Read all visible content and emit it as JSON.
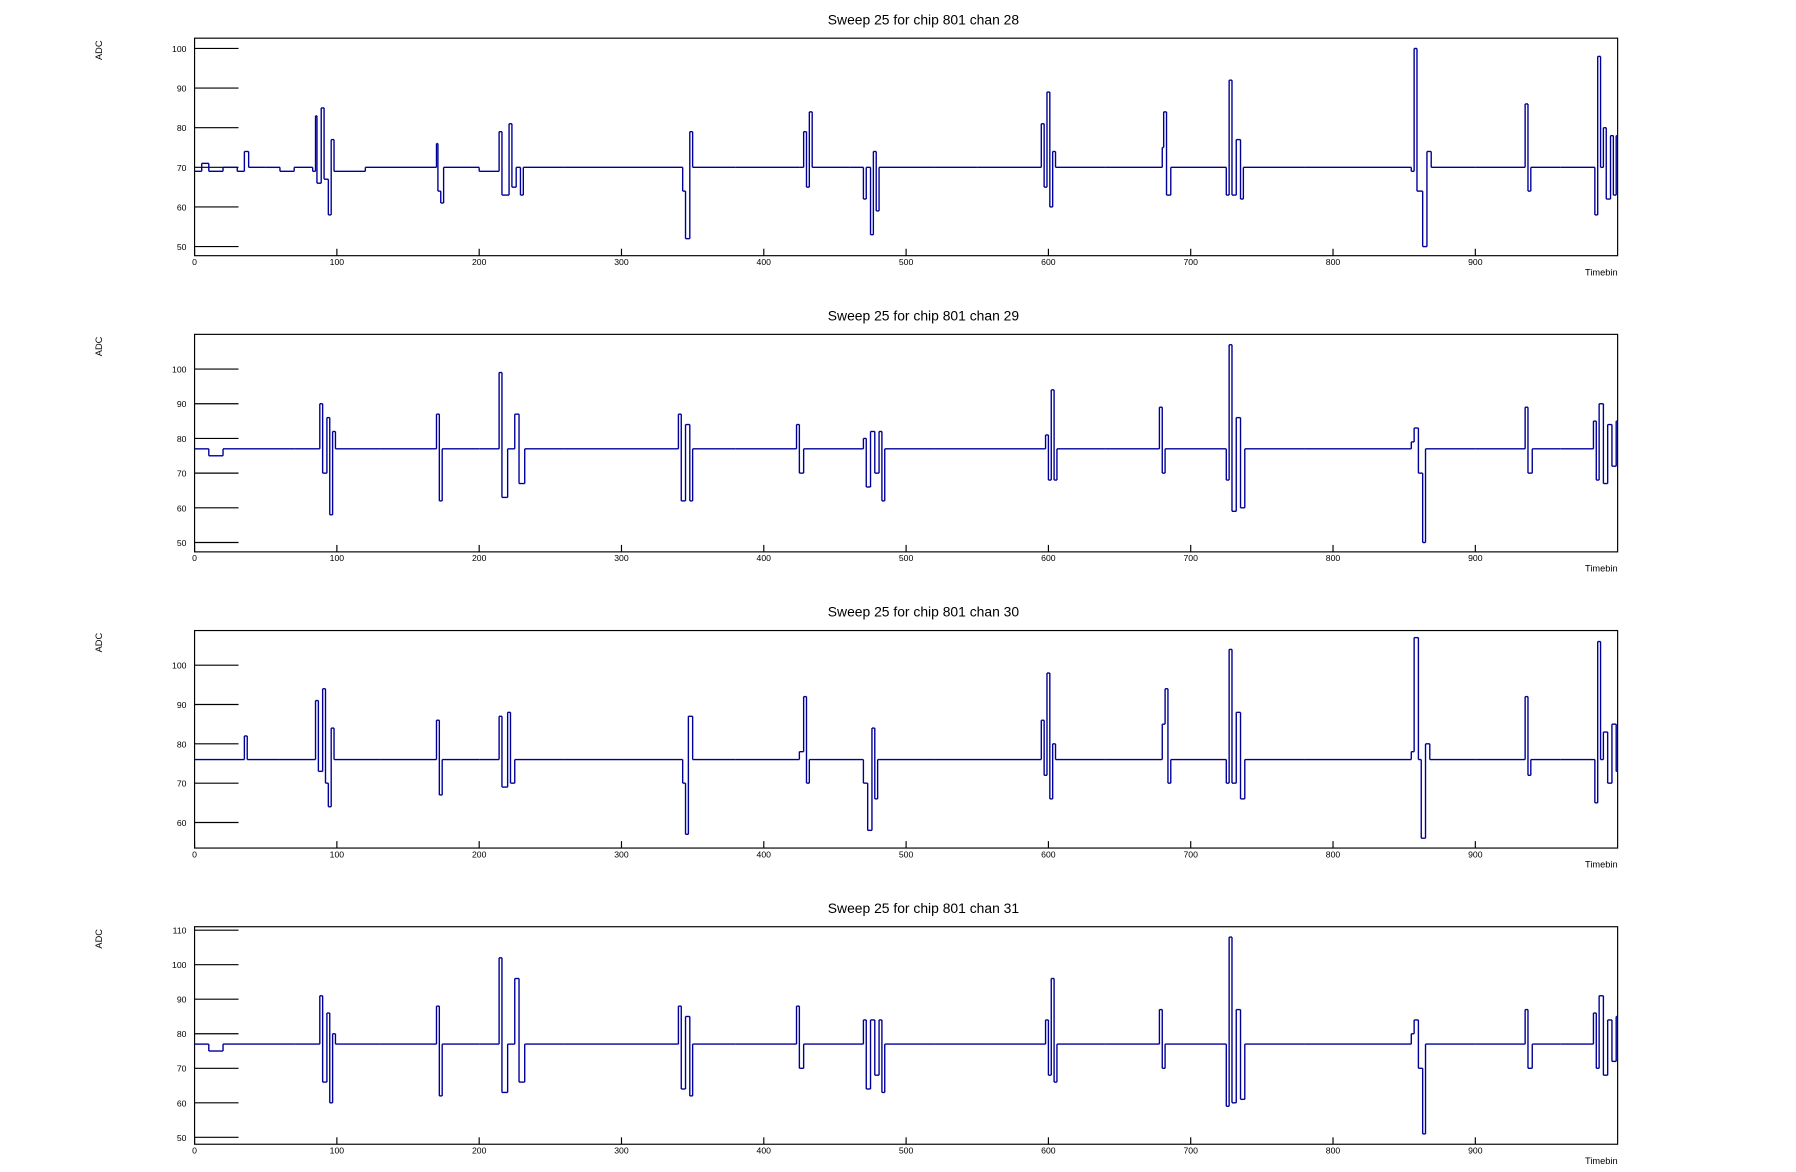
{
  "chart_data": [
    {
      "type": "step",
      "title": "Sweep 25 for chip 801 chan 28",
      "xlabel": "Timebin",
      "ylabel": "ADC",
      "color": "#000099",
      "xlim": [
        0,
        1000
      ],
      "xticks": [
        0,
        100,
        200,
        300,
        400,
        500,
        600,
        700,
        800,
        900
      ],
      "ylim": [
        47.7,
        102.6
      ],
      "yticks": [
        50,
        60,
        70,
        80,
        90,
        100
      ],
      "x": [
        0,
        5,
        10,
        20,
        30,
        35,
        38,
        50,
        60,
        70,
        83,
        85,
        86,
        89,
        91,
        94,
        96,
        98,
        120,
        150,
        170,
        171,
        173,
        175,
        200,
        214,
        216,
        221,
        223,
        226,
        229,
        231,
        260,
        300,
        343,
        345,
        348,
        350,
        380,
        425,
        428,
        430,
        432,
        434,
        460,
        470,
        472,
        475,
        477,
        479,
        481,
        520,
        550,
        595,
        597,
        599,
        601,
        603,
        605,
        640,
        680,
        681,
        683,
        686,
        725,
        727,
        729,
        732,
        735,
        737,
        780,
        820,
        855,
        857,
        859,
        863,
        866,
        869,
        900,
        935,
        937,
        939,
        960,
        984,
        986,
        988,
        990,
        992,
        995,
        997,
        999
      ],
      "values": [
        69,
        71,
        69,
        70,
        69,
        74,
        70,
        70,
        69,
        70,
        69,
        83,
        66,
        85,
        67,
        58,
        77,
        69,
        70,
        70,
        76,
        64,
        61,
        70,
        69,
        79,
        63,
        81,
        65,
        70,
        63,
        70,
        70,
        70,
        64,
        52,
        79,
        70,
        70,
        70,
        79,
        65,
        84,
        70,
        70,
        62,
        70,
        53,
        74,
        59,
        70,
        70,
        70,
        81,
        65,
        89,
        60,
        74,
        70,
        70,
        75,
        84,
        63,
        70,
        63,
        92,
        63,
        77,
        62,
        70,
        70,
        70,
        69,
        100,
        64,
        50,
        74,
        70,
        70,
        86,
        64,
        70,
        70,
        58,
        98,
        70,
        80,
        62,
        78,
        63,
        78
      ]
    },
    {
      "type": "step",
      "title": "Sweep 25 for chip 801 chan 29",
      "xlabel": "Timebin",
      "ylabel": "ADC",
      "color": "#000099",
      "xlim": [
        0,
        1000
      ],
      "xticks": [
        0,
        100,
        200,
        300,
        400,
        500,
        600,
        700,
        800,
        900
      ],
      "ylim": [
        47.3,
        110
      ],
      "yticks": [
        50,
        60,
        70,
        80,
        90,
        100
      ],
      "x": [
        0,
        10,
        20,
        40,
        70,
        88,
        90,
        93,
        95,
        97,
        99,
        130,
        170,
        172,
        174,
        200,
        214,
        216,
        220,
        225,
        228,
        232,
        260,
        300,
        340,
        342,
        345,
        348,
        350,
        380,
        423,
        425,
        428,
        470,
        472,
        475,
        478,
        481,
        483,
        485,
        520,
        560,
        598,
        600,
        602,
        604,
        606,
        640,
        678,
        680,
        682,
        725,
        727,
        729,
        732,
        735,
        738,
        780,
        820,
        855,
        857,
        860,
        863,
        865,
        900,
        935,
        937,
        940,
        960,
        983,
        985,
        987,
        990,
        993,
        996,
        999
      ],
      "values": [
        77,
        75,
        77,
        77,
        77,
        90,
        70,
        86,
        58,
        82,
        77,
        77,
        87,
        62,
        77,
        77,
        99,
        63,
        77,
        87,
        67,
        77,
        77,
        77,
        87,
        62,
        84,
        62,
        77,
        77,
        84,
        70,
        77,
        80,
        66,
        82,
        70,
        82,
        62,
        77,
        77,
        77,
        81,
        68,
        94,
        68,
        77,
        77,
        89,
        70,
        77,
        68,
        107,
        59,
        86,
        60,
        77,
        77,
        77,
        79,
        83,
        70,
        50,
        77,
        77,
        89,
        70,
        77,
        77,
        85,
        68,
        90,
        67,
        84,
        72,
        85
      ]
    },
    {
      "type": "step",
      "title": "Sweep 25 for chip 801 chan 30",
      "xlabel": "Timebin",
      "ylabel": "ADC",
      "color": "#000099",
      "xlim": [
        0,
        1000
      ],
      "xticks": [
        0,
        100,
        200,
        300,
        400,
        500,
        600,
        700,
        800,
        900
      ],
      "ylim": [
        53.5,
        108.8
      ],
      "yticks": [
        60,
        70,
        80,
        90,
        100
      ],
      "x": [
        0,
        20,
        35,
        37,
        60,
        85,
        87,
        90,
        92,
        94,
        96,
        98,
        130,
        170,
        172,
        174,
        200,
        214,
        216,
        220,
        222,
        225,
        260,
        300,
        343,
        345,
        347,
        350,
        380,
        425,
        428,
        430,
        432,
        470,
        473,
        476,
        478,
        480,
        520,
        560,
        595,
        597,
        599,
        601,
        603,
        605,
        640,
        680,
        682,
        684,
        686,
        725,
        727,
        729,
        732,
        735,
        738,
        780,
        820,
        855,
        857,
        860,
        862,
        865,
        868,
        900,
        935,
        937,
        939,
        960,
        984,
        986,
        988,
        990,
        993,
        996,
        999
      ],
      "values": [
        76,
        76,
        82,
        76,
        76,
        91,
        73,
        94,
        70,
        64,
        84,
        76,
        76,
        86,
        67,
        76,
        76,
        87,
        69,
        88,
        70,
        76,
        76,
        76,
        70,
        57,
        87,
        76,
        76,
        78,
        92,
        70,
        76,
        70,
        58,
        84,
        66,
        76,
        76,
        76,
        86,
        72,
        98,
        66,
        80,
        76,
        76,
        85,
        94,
        70,
        76,
        70,
        104,
        70,
        88,
        66,
        76,
        76,
        76,
        78,
        107,
        76,
        56,
        80,
        76,
        76,
        92,
        72,
        76,
        76,
        65,
        106,
        76,
        83,
        70,
        85,
        73
      ]
    },
    {
      "type": "step",
      "title": "Sweep 25 for chip 801 chan 31",
      "xlabel": "Timebin",
      "ylabel": "ADC",
      "color": "#000099",
      "xlim": [
        0,
        1000
      ],
      "xticks": [
        0,
        100,
        200,
        300,
        400,
        500,
        600,
        700,
        800,
        900
      ],
      "ylim": [
        48,
        111
      ],
      "yticks": [
        50,
        60,
        70,
        80,
        90,
        100,
        110
      ],
      "x": [
        0,
        10,
        20,
        40,
        70,
        88,
        90,
        93,
        95,
        97,
        99,
        130,
        170,
        172,
        174,
        200,
        214,
        216,
        220,
        225,
        228,
        232,
        260,
        300,
        340,
        342,
        345,
        348,
        350,
        380,
        423,
        425,
        428,
        470,
        472,
        475,
        478,
        481,
        483,
        485,
        520,
        560,
        598,
        600,
        602,
        604,
        606,
        640,
        678,
        680,
        682,
        725,
        727,
        729,
        732,
        735,
        738,
        780,
        820,
        855,
        857,
        860,
        863,
        865,
        900,
        935,
        937,
        940,
        960,
        983,
        985,
        987,
        990,
        993,
        996,
        999
      ],
      "values": [
        77,
        75,
        77,
        77,
        77,
        91,
        66,
        86,
        60,
        80,
        77,
        77,
        88,
        62,
        77,
        77,
        102,
        63,
        77,
        96,
        66,
        77,
        77,
        77,
        88,
        64,
        85,
        62,
        77,
        77,
        88,
        70,
        77,
        84,
        64,
        84,
        68,
        84,
        63,
        77,
        77,
        77,
        84,
        68,
        96,
        66,
        77,
        77,
        87,
        70,
        77,
        59,
        108,
        60,
        87,
        61,
        77,
        77,
        77,
        80,
        84,
        70,
        51,
        77,
        77,
        87,
        70,
        77,
        77,
        86,
        70,
        91,
        68,
        84,
        72,
        85
      ]
    }
  ]
}
